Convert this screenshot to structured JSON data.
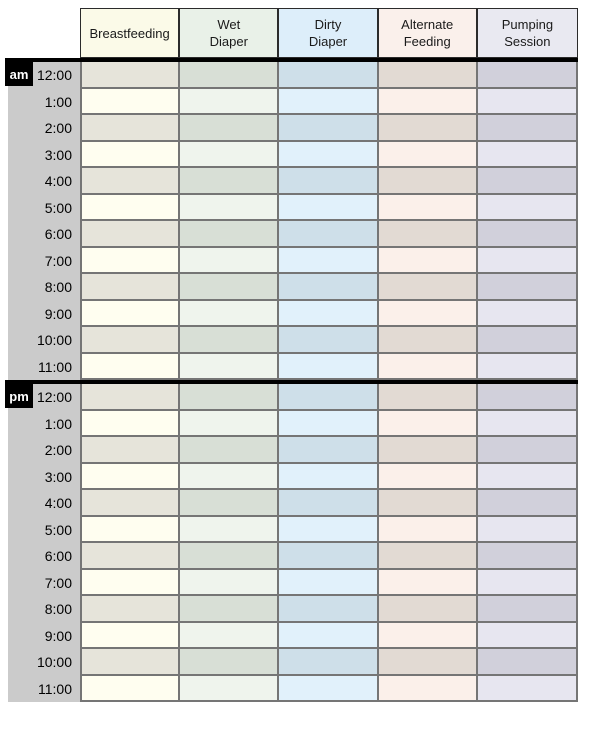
{
  "schedule": {
    "columns": [
      {
        "id": "breastfeeding",
        "label": "Breastfeeding",
        "header_bg": "#fbfae8",
        "row_light": "#fffef0",
        "row_dark": "#e6e4da"
      },
      {
        "id": "wet-diaper",
        "label": "Wet\nDiaper",
        "header_bg": "#e9f1e8",
        "row_light": "#eff4ed",
        "row_dark": "#d8dfd6"
      },
      {
        "id": "dirty-diaper",
        "label": "Dirty\nDiaper",
        "header_bg": "#ddeefa",
        "row_light": "#e1f1fb",
        "row_dark": "#cedfe9"
      },
      {
        "id": "alternate-feeding",
        "label": "Alternate\nFeeding",
        "header_bg": "#faf0eb",
        "row_light": "#fbf0ea",
        "row_dark": "#e2dad3"
      },
      {
        "id": "pumping-session",
        "label": "Pumping\nSession",
        "header_bg": "#e9e9f1",
        "row_light": "#e7e6f0",
        "row_dark": "#d1d0db"
      }
    ],
    "sections": [
      {
        "period": "am",
        "times": [
          "12:00",
          "1:00",
          "2:00",
          "3:00",
          "4:00",
          "5:00",
          "6:00",
          "7:00",
          "8:00",
          "9:00",
          "10:00",
          "11:00"
        ]
      },
      {
        "period": "pm",
        "times": [
          "12:00",
          "1:00",
          "2:00",
          "3:00",
          "4:00",
          "5:00",
          "6:00",
          "7:00",
          "8:00",
          "9:00",
          "10:00",
          "11:00"
        ]
      }
    ],
    "colors": {
      "gutter_bg": "#cbcbcb",
      "grid_line": "#757575",
      "header_line": "#2b2b2b",
      "section_divider": "#000000",
      "badge_bg": "#000000",
      "badge_text": "#ffffff"
    }
  }
}
